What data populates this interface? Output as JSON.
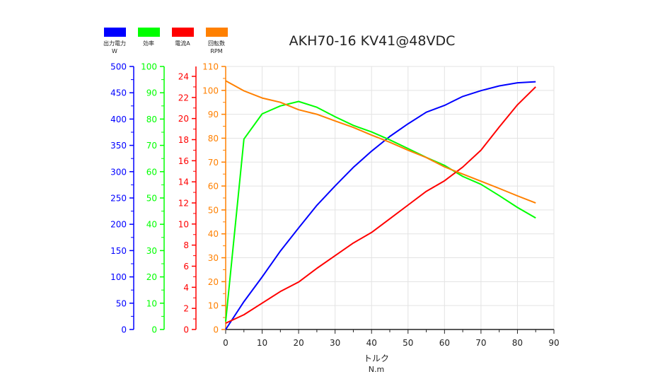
{
  "chart_data": {
    "type": "line",
    "title": "AKH70-16 KV41@48VDC",
    "xlabel": "トルク",
    "xunit": "N.m",
    "xlim": [
      0,
      90
    ],
    "xticks": [
      0,
      10,
      20,
      30,
      40,
      50,
      60,
      70,
      80,
      90
    ],
    "x": [
      0,
      5,
      10,
      15,
      20,
      25,
      30,
      35,
      40,
      45,
      50,
      55,
      60,
      65,
      70,
      75,
      80,
      85
    ],
    "grid": true,
    "legend_position": "top-left",
    "axes": [
      {
        "id": "power",
        "color": "#0000ff",
        "range": [
          0,
          500
        ],
        "step": 50
      },
      {
        "id": "eff",
        "color": "#00ff00",
        "range": [
          0,
          100
        ],
        "step": 10
      },
      {
        "id": "cur",
        "color": "#ff0000",
        "range": [
          0,
          24
        ],
        "step": 2
      },
      {
        "id": "rpm",
        "color": "#ff8000",
        "range": [
          0,
          110
        ],
        "step": 10
      }
    ],
    "series": [
      {
        "name": "出力電力",
        "unit": "W",
        "axis": "power",
        "color": "#0000ff",
        "values": [
          0,
          53,
          100,
          149,
          193,
          236,
          273,
          308,
          339,
          367,
          391,
          413,
          426,
          443,
          454,
          463,
          469,
          471
        ]
      },
      {
        "name": "効率",
        "unit": "",
        "axis": "eff",
        "color": "#00ff00",
        "values": [
          3,
          72.4,
          82,
          85,
          86.7,
          84.5,
          80.9,
          77.6,
          75.1,
          72.1,
          68.8,
          65.4,
          62.4,
          58.2,
          55.2,
          50.9,
          46.4,
          42.4
        ]
      },
      {
        "name": "電流A",
        "unit": "",
        "axis": "cur",
        "color": "#ff0000",
        "values": [
          0.6,
          1.4,
          2.5,
          3.6,
          4.5,
          5.8,
          7.0,
          8.2,
          9.2,
          10.5,
          11.8,
          13.1,
          14.1,
          15.4,
          17.0,
          19.2,
          21.3,
          23.0
        ]
      },
      {
        "name": "回転数",
        "unit": "RPM",
        "axis": "rpm",
        "color": "#ff8000",
        "values": [
          104,
          99.8,
          96.8,
          95,
          91.9,
          90,
          87.2,
          84.5,
          81.3,
          78.3,
          75,
          71.9,
          68,
          65,
          62,
          59,
          55.9,
          52.9
        ]
      }
    ]
  }
}
